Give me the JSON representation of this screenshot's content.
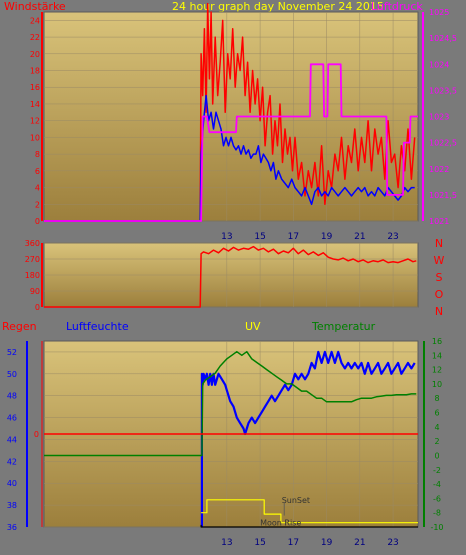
{
  "colors": {
    "frame": "#7a7a7a",
    "plot_top": "#d9c37a",
    "plot_bottom": "#9c7f3c",
    "grid": "#9a8a66",
    "wind_gust": "#ff0000",
    "wind_avg": "#0000ff",
    "pressure": "#ff00ff",
    "direction": "#ff0000",
    "humidity": "#0000ff",
    "temperature": "#008000",
    "rain": "#ff0000",
    "uv": "#ffff00",
    "sun": "#000000"
  },
  "x_ticks": [
    "13",
    "15",
    "17",
    "19",
    "21",
    "23"
  ],
  "chart_data": [
    {
      "type": "line",
      "title": "24 hour graph day   November 24 2015",
      "left_label": "Windstärke",
      "right_label": "Luftdruck",
      "x_range": [
        2,
        24.5
      ],
      "y_left_ticks": [
        "0",
        "2",
        "4",
        "6",
        "8",
        "10",
        "12",
        "14",
        "16",
        "18",
        "20",
        "22",
        "24"
      ],
      "y_left_range": [
        0,
        25
      ],
      "y_right_ticks": [
        "1021",
        "1021,5",
        "1022",
        "1022,5",
        "1023",
        "1023,5",
        "1024",
        "1024,5",
        "1025"
      ],
      "y_right_range": [
        1021,
        1025
      ],
      "series": [
        {
          "name": "gust",
          "color_key": "wind_gust",
          "x": [
            2,
            11.4,
            11.45,
            11.55,
            11.65,
            11.75,
            11.85,
            11.95,
            12.05,
            12.15,
            12.3,
            12.45,
            12.6,
            12.75,
            12.9,
            13.05,
            13.2,
            13.35,
            13.5,
            13.65,
            13.8,
            13.95,
            14.1,
            14.25,
            14.4,
            14.55,
            14.7,
            14.85,
            15,
            15.15,
            15.3,
            15.45,
            15.6,
            15.75,
            15.9,
            16.05,
            16.2,
            16.35,
            16.5,
            16.65,
            16.8,
            16.95,
            17.1,
            17.3,
            17.5,
            17.7,
            17.9,
            18.1,
            18.3,
            18.5,
            18.7,
            18.9,
            19.1,
            19.3,
            19.5,
            19.7,
            19.9,
            20.1,
            20.3,
            20.5,
            20.7,
            20.9,
            21.1,
            21.3,
            21.5,
            21.7,
            21.9,
            22.1,
            22.3,
            22.5,
            22.7,
            22.9,
            23.1,
            23.3,
            23.5,
            23.7,
            23.9,
            24.1,
            24.3
          ],
          "y": [
            0,
            0,
            20,
            15,
            23,
            13,
            26,
            17,
            25,
            14,
            22,
            15,
            19,
            24,
            13,
            20,
            17,
            23,
            16,
            20,
            18,
            22,
            15,
            19,
            13,
            18,
            14,
            17,
            12,
            16,
            9,
            13,
            15,
            8,
            12,
            9,
            14,
            7,
            11,
            8,
            10,
            6,
            10,
            5,
            7,
            3,
            6,
            4,
            7,
            3,
            9,
            2,
            6,
            4,
            8,
            6,
            10,
            5,
            9,
            7,
            11,
            6,
            10,
            7,
            12,
            6,
            11,
            8,
            10,
            5,
            12,
            7,
            8,
            4,
            9,
            6,
            11,
            5,
            10
          ]
        },
        {
          "name": "avg",
          "color_key": "wind_avg",
          "x": [
            2,
            11.4,
            11.45,
            11.6,
            11.75,
            11.9,
            12.05,
            12.2,
            12.35,
            12.5,
            12.65,
            12.8,
            12.95,
            13.1,
            13.25,
            13.4,
            13.55,
            13.7,
            13.85,
            14,
            14.15,
            14.3,
            14.45,
            14.6,
            14.75,
            14.9,
            15.05,
            15.2,
            15.35,
            15.5,
            15.65,
            15.8,
            15.95,
            16.1,
            16.3,
            16.5,
            16.7,
            16.9,
            17.1,
            17.3,
            17.5,
            17.7,
            17.9,
            18.1,
            18.3,
            18.5,
            18.7,
            18.9,
            19.1,
            19.3,
            19.5,
            19.7,
            19.9,
            20.1,
            20.3,
            20.5,
            20.7,
            20.9,
            21.1,
            21.3,
            21.5,
            21.7,
            21.9,
            22.1,
            22.3,
            22.5,
            22.7,
            22.9,
            23.1,
            23.3,
            23.5,
            23.7,
            23.9,
            24.1,
            24.3
          ],
          "y": [
            0,
            0,
            8,
            12,
            15,
            12,
            13,
            11,
            13,
            12,
            11,
            9,
            10,
            9,
            10,
            9,
            8.5,
            9,
            8,
            9,
            8,
            8.5,
            7.5,
            8,
            8,
            9,
            7,
            8,
            7.5,
            7,
            6,
            7,
            5,
            6,
            5,
            4.5,
            4,
            5,
            4,
            3.5,
            3,
            4,
            3,
            2,
            3.5,
            4,
            3,
            3.5,
            3,
            4,
            3.5,
            3,
            3.5,
            4,
            3.5,
            3,
            3.5,
            4,
            3.5,
            4,
            3,
            3.5,
            3,
            4,
            3.5,
            3,
            4,
            3.5,
            3,
            2.5,
            3,
            4,
            3.5,
            4,
            4
          ]
        },
        {
          "name": "pressure",
          "color_key": "pressure",
          "axis": "right",
          "x": [
            2,
            11.45,
            11.55,
            11.8,
            11.95,
            12.2,
            13.55,
            13.6,
            16,
            18,
            18.05,
            18.8,
            18.85,
            19.05,
            19.1,
            19.85,
            19.9,
            22.6,
            22.65,
            23.6,
            23.65,
            24,
            24.05,
            24.5
          ],
          "y": [
            1021,
            1021,
            1023,
            1023,
            1022.7,
            1022.7,
            1022.7,
            1023,
            1023,
            1023,
            1024,
            1024,
            1023,
            1023,
            1024,
            1024,
            1023,
            1023,
            1021.5,
            1021.5,
            1022.5,
            1022.5,
            1023,
            1023
          ]
        }
      ]
    },
    {
      "type": "line",
      "y_ticks": [
        "0",
        "90",
        "180",
        "270",
        "360"
      ],
      "y_range": [
        0,
        360
      ],
      "right_labels": [
        "N",
        "W",
        "S",
        "O",
        "N"
      ],
      "series": [
        {
          "name": "direction",
          "color_key": "direction",
          "x": [
            2,
            11.4,
            11.45,
            11.6,
            11.9,
            12.2,
            12.5,
            12.8,
            13.1,
            13.4,
            13.7,
            14,
            14.3,
            14.6,
            14.9,
            15.2,
            15.5,
            15.8,
            16.1,
            16.4,
            16.7,
            17,
            17.3,
            17.6,
            17.9,
            18.2,
            18.5,
            18.8,
            19.1,
            19.4,
            19.7,
            20,
            20.3,
            20.6,
            20.9,
            21.2,
            21.5,
            21.8,
            22.1,
            22.4,
            22.7,
            23,
            23.3,
            23.6,
            23.9,
            24.2,
            24.4
          ],
          "y": [
            0,
            0,
            300,
            310,
            300,
            320,
            305,
            330,
            315,
            335,
            320,
            330,
            325,
            340,
            320,
            330,
            310,
            325,
            300,
            315,
            305,
            330,
            300,
            320,
            295,
            310,
            290,
            305,
            280,
            270,
            265,
            275,
            260,
            270,
            255,
            265,
            250,
            260,
            255,
            265,
            250,
            255,
            250,
            260,
            270,
            255,
            260
          ]
        }
      ]
    },
    {
      "type": "line",
      "labels": {
        "rain": "Regen",
        "humidity": "Luftfeuchte",
        "uv": "UV",
        "temperature": "Temperatur"
      },
      "x_range": [
        2,
        24.5
      ],
      "y_humidity_ticks": [
        "36",
        "38",
        "40",
        "42",
        "44",
        "46",
        "48",
        "50",
        "52"
      ],
      "y_humidity_range": [
        36,
        53
      ],
      "y_rain_ticks": [
        "0"
      ],
      "y_temperature_ticks": [
        "-10",
        "-8",
        "-6",
        "-4",
        "-2",
        "0",
        "2",
        "4",
        "6",
        "8",
        "10",
        "12",
        "14",
        "16"
      ],
      "y_temperature_range": [
        -10,
        16
      ],
      "annotations": [
        {
          "text": "SunSet",
          "x": 16.3,
          "y": -6.2
        },
        {
          "text": "Moon Rise",
          "x": 15.0,
          "y": -9.4
        }
      ],
      "series": [
        {
          "name": "humidity",
          "color_key": "humidity",
          "x": [
            11.5,
            11.5,
            11.55,
            11.6,
            11.7,
            11.8,
            11.9,
            12,
            12.1,
            12.2,
            12.3,
            12.5,
            12.7,
            12.9,
            13,
            13.1,
            13.2,
            13.4,
            13.6,
            13.8,
            14,
            14.1,
            14.2,
            14.3,
            14.5,
            14.7,
            14.9,
            15.1,
            15.3,
            15.5,
            15.7,
            15.9,
            16.1,
            16.3,
            16.5,
            16.7,
            16.9,
            17.1,
            17.3,
            17.5,
            17.7,
            17.9,
            18.1,
            18.3,
            18.5,
            18.7,
            18.9,
            19.1,
            19.3,
            19.5,
            19.7,
            19.9,
            20.1,
            20.3,
            20.5,
            20.7,
            20.9,
            21.1,
            21.3,
            21.5,
            21.7,
            21.9,
            22.1,
            22.3,
            22.5,
            22.7,
            22.9,
            23.1,
            23.3,
            23.5,
            23.7,
            23.9,
            24.1,
            24.3
          ],
          "y": [
            36,
            50,
            49,
            50,
            49.5,
            50,
            49,
            50,
            49,
            50,
            49,
            50,
            49.5,
            49,
            48.5,
            48,
            47.5,
            47,
            46,
            45.5,
            45,
            44.5,
            45,
            45.5,
            46,
            45.5,
            46,
            46.5,
            47,
            47.5,
            48,
            47.5,
            48,
            48.5,
            49,
            48.5,
            49,
            50,
            49.5,
            50,
            49.5,
            50,
            51,
            50.5,
            52,
            51,
            52,
            51,
            52,
            51,
            52,
            51,
            50.5,
            51,
            50.5,
            51,
            50.5,
            51,
            50,
            51,
            50,
            50.5,
            51,
            50,
            50.5,
            51,
            50,
            50.5,
            51,
            50,
            50.5,
            51,
            50.5,
            51
          ]
        },
        {
          "name": "temperature",
          "color_key": "temperature",
          "x": [
            2,
            11.5,
            11.55,
            11.7,
            12,
            12.3,
            12.6,
            13,
            13.3,
            13.6,
            13.9,
            14.2,
            14.5,
            14.8,
            15.1,
            15.4,
            15.7,
            16,
            16.3,
            16.6,
            16.9,
            17.2,
            17.5,
            17.8,
            18.1,
            18.4,
            18.7,
            19,
            19.3,
            19.6,
            19.9,
            20.2,
            20.5,
            20.8,
            21.1,
            21.4,
            21.7,
            22,
            22.3,
            22.6,
            22.9,
            23.2,
            23.5,
            23.8,
            24.1,
            24.4
          ],
          "y": [
            0,
            0,
            10,
            10.5,
            11,
            11.5,
            12.5,
            13.5,
            14,
            14.5,
            14,
            14.5,
            13.5,
            13,
            12.5,
            12,
            11.5,
            11,
            10.5,
            10,
            10,
            9.5,
            9,
            9,
            8.5,
            8,
            8,
            7.5,
            7.5,
            7.5,
            7.5,
            7.5,
            7.5,
            7.8,
            8,
            8,
            8,
            8.2,
            8.3,
            8.4,
            8.4,
            8.5,
            8.5,
            8.5,
            8.6,
            8.6
          ]
        },
        {
          "name": "rain",
          "color_key": "rain",
          "fixed_value": 0
        },
        {
          "name": "uv",
          "color_key": "uv",
          "x": [
            11.45,
            11.8,
            11.8,
            15.25,
            15.25,
            16.25,
            16.25,
            24.5
          ],
          "y": [
            -8,
            -8,
            -6.2,
            -6.2,
            -8.2,
            -8.2,
            -9.4,
            -9.4
          ]
        },
        {
          "name": "sun",
          "color_key": "sun",
          "x": [
            11.45,
            11.45,
            11.5,
            24.5
          ],
          "y": [
            -9.7,
            -10,
            -10,
            -10
          ]
        }
      ]
    }
  ]
}
